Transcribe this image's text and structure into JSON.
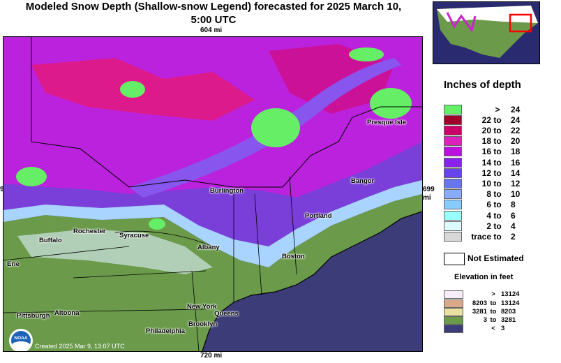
{
  "title": "Modeled Snow Depth (Shallow-snow Legend) forecasted for 2025 March 10, 5:00 UTC",
  "title_line1": "Modeled Snow Depth (Shallow-snow Legend) forecasted for 2025 March 10,",
  "title_line2": "5:00 UTC",
  "scale_top": "604 mi",
  "scale_bottom": "720 mi",
  "scale_right_1": "699",
  "scale_right_2": "mi",
  "scale_left": "9",
  "credit": "Created 2025 Mar 9, 13:07 UTC",
  "logo_text": "NOAA",
  "cities": [
    "Presque Isle",
    "Bangor",
    "Burlington",
    "Portland",
    "Rochester",
    "Syracuse",
    "Buffalo",
    "Albany",
    "Erie",
    "Boston",
    "New York",
    "Pittsburgh",
    "Altoona",
    "Queens",
    "Philadelphia",
    "Brooklyn"
  ],
  "legend": {
    "title": "Inches of depth",
    "to_word": "to",
    "items": [
      {
        "a": "",
        "t": ">",
        "b": "24",
        "color": "#66ee66"
      },
      {
        "a": "22",
        "t": "to",
        "b": "24",
        "color": "#a0002a"
      },
      {
        "a": "20",
        "t": "to",
        "b": "22",
        "color": "#cc0066"
      },
      {
        "a": "18",
        "t": "to",
        "b": "20",
        "color": "#dd22bb"
      },
      {
        "a": "16",
        "t": "to",
        "b": "18",
        "color": "#bb11dd"
      },
      {
        "a": "14",
        "t": "to",
        "b": "16",
        "color": "#8822ee"
      },
      {
        "a": "12",
        "t": "to",
        "b": "14",
        "color": "#6644ee"
      },
      {
        "a": "10",
        "t": "to",
        "b": "12",
        "color": "#6677ee"
      },
      {
        "a": "8",
        "t": "to",
        "b": "10",
        "color": "#88aaff"
      },
      {
        "a": "6",
        "t": "to",
        "b": "8",
        "color": "#88ccff"
      },
      {
        "a": "4",
        "t": "to",
        "b": "6",
        "color": "#99ffff"
      },
      {
        "a": "2",
        "t": "to",
        "b": "4",
        "color": "#ddfaff"
      },
      {
        "a": "trace",
        "t": "to",
        "b": "2",
        "color": "#d8d8d8"
      }
    ],
    "not_estimated": "Not Estimated"
  },
  "elevation": {
    "title": "Elevation in feet",
    "items": [
      {
        "a": "",
        "t": ">",
        "b": "13124",
        "color": "#f7ecf7"
      },
      {
        "a": "8203",
        "t": "to",
        "b": "13124",
        "color": "#d9a98a"
      },
      {
        "a": "3281",
        "t": "to",
        "b": "8203",
        "color": "#e8e0a0"
      },
      {
        "a": "3",
        "t": "to",
        "b": "3281",
        "color": "#6a9a4a"
      },
      {
        "a": "",
        "t": "<",
        "b": "3",
        "color": "#3c3c78"
      }
    ]
  },
  "map_colors": {
    "ocean": "#3c3c78",
    "land_low": "#5f8f42",
    "land_mid": "#7da656",
    "snow_trace": "#e6f4ff",
    "snow_light": "#a8d4ff",
    "snow_mid": "#7a6ff0",
    "snow_deep": "#bb22dd",
    "snow_heavy": "#dd22aa",
    "snow_max": "#66ee66"
  }
}
